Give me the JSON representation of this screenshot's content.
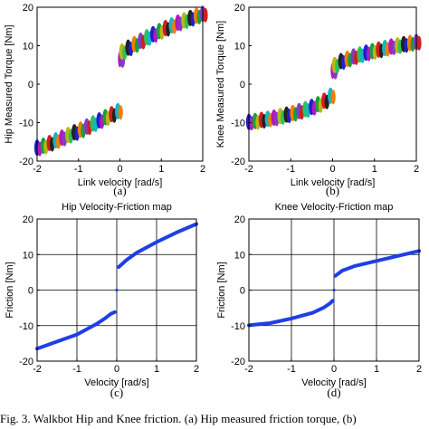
{
  "caption": "Fig. 3. Walkbot Hip and Knee friction. (a) Hip measured friction torque, (b)",
  "chart_data": [
    {
      "type": "scatter",
      "panel_label": "(a)",
      "title": "",
      "xlabel": "Link velocity [rad/s]",
      "ylabel": "Hip Measured Torque [Nm]",
      "xlim": [
        -2,
        2
      ],
      "ylim": [
        -20,
        20
      ],
      "xticks": [
        "-2",
        "-1",
        "0",
        "1",
        "2"
      ],
      "yticks": [
        "20",
        "10",
        "0",
        "-10",
        "-20"
      ],
      "grid": false,
      "markers": "multi-colored clusters",
      "colors": [
        "#1f1fd0",
        "#17a03a",
        "#d01f1f",
        "#17b5c0",
        "#b517c0",
        "#b8b817",
        "#222222",
        "#f07f00",
        "#7f3fbf",
        "#2fbf5f"
      ],
      "series": [
        {
          "x": [
            -2.0,
            -1.85,
            -1.7,
            -1.55,
            -1.4,
            -1.25,
            -1.1,
            -0.95,
            -0.8,
            -0.65,
            -0.5,
            -0.35,
            -0.2,
            -0.05
          ],
          "y": [
            -16.5,
            -16,
            -15.3,
            -14.6,
            -13.9,
            -13.2,
            -12.5,
            -11.8,
            -11,
            -10.2,
            -9.4,
            -8.6,
            -7.8,
            -7
          ]
        },
        {
          "x": [
            0.0,
            0.05,
            0.2,
            0.35,
            0.5,
            0.65,
            0.8,
            0.95,
            1.1,
            1.25,
            1.4,
            1.55,
            1.7,
            1.85,
            2.0
          ],
          "y": [
            6.5,
            8.5,
            9.5,
            10.4,
            11.3,
            12.2,
            13,
            13.8,
            14.6,
            15.3,
            16,
            16.6,
            17.2,
            17.8,
            18.3
          ]
        }
      ]
    },
    {
      "type": "scatter",
      "panel_label": "(b)",
      "title": "",
      "xlabel": "Link velocity [rad/s]",
      "ylabel": "Knee Measured Torque [Nm]",
      "xlim": [
        -2,
        2
      ],
      "ylim": [
        -20,
        20
      ],
      "xticks": [
        "-2",
        "-1",
        "0",
        "1",
        "2"
      ],
      "yticks": [
        "20",
        "10",
        "0",
        "-10",
        "-20"
      ],
      "grid": false,
      "markers": "multi-colored clusters",
      "colors": [
        "#1f1fd0",
        "#17a03a",
        "#d01f1f",
        "#17b5c0",
        "#b517c0",
        "#b8b817",
        "#222222",
        "#f07f00",
        "#7f3fbf",
        "#2fbf5f"
      ],
      "series": [
        {
          "x": [
            -2.0,
            -1.85,
            -1.7,
            -1.55,
            -1.4,
            -1.25,
            -1.1,
            -0.95,
            -0.8,
            -0.65,
            -0.5,
            -0.35,
            -0.2,
            -0.05
          ],
          "y": [
            -9.8,
            -9.6,
            -9.3,
            -9,
            -8.7,
            -8.3,
            -7.9,
            -7.5,
            -7,
            -6.5,
            -5.9,
            -5.2,
            -4.3,
            -3
          ]
        },
        {
          "x": [
            0.0,
            0.05,
            0.2,
            0.35,
            0.5,
            0.65,
            0.8,
            0.95,
            1.1,
            1.25,
            1.4,
            1.55,
            1.7,
            1.85,
            2.0
          ],
          "y": [
            3.5,
            5,
            6,
            6.6,
            7.2,
            7.7,
            8.2,
            8.6,
            9,
            9.4,
            9.8,
            10.1,
            10.4,
            10.7,
            11
          ]
        }
      ]
    },
    {
      "type": "line",
      "panel_label": "(c)",
      "title": "Hip Velocity-Friction map",
      "xlabel": "Velocity [rad/s]",
      "ylabel": "Friction [Nm]",
      "xlim": [
        -2,
        2
      ],
      "ylim": [
        -20,
        20
      ],
      "xticks": [
        "-2",
        "-1",
        "0",
        "1",
        "2"
      ],
      "yticks": [
        "20",
        "10",
        "0",
        "-10",
        "-20"
      ],
      "grid": true,
      "color": "#1f3fe6",
      "series": [
        {
          "x": [
            -2.0,
            -1.5,
            -1.0,
            -0.5,
            -0.3,
            -0.15,
            -0.05
          ],
          "y": [
            -16.5,
            -14.5,
            -12.5,
            -9.5,
            -8,
            -6.7,
            -6.2
          ]
        },
        {
          "x": [
            0.0
          ],
          "y": [
            0
          ]
        },
        {
          "x": [
            0.05,
            0.25,
            0.5,
            1.0,
            1.5,
            2.0
          ],
          "y": [
            6.5,
            8.5,
            10.5,
            13.5,
            16.2,
            18.6
          ]
        }
      ]
    },
    {
      "type": "line",
      "panel_label": "(d)",
      "title": "Knee Velocity-Friction map",
      "xlabel": "Velocity [rad/s]",
      "ylabel": "Friction [Nm]",
      "xlim": [
        -2,
        2
      ],
      "ylim": [
        -20,
        20
      ],
      "xticks": [
        "-2",
        "-1",
        "0",
        "1",
        "2"
      ],
      "yticks": [
        "20",
        "10",
        "0",
        "-10",
        "-20"
      ],
      "grid": true,
      "color": "#1f3fe6",
      "series": [
        {
          "x": [
            -2.0,
            -1.5,
            -1.0,
            -0.5,
            -0.25,
            -0.1,
            -0.03
          ],
          "y": [
            -9.9,
            -9.3,
            -8,
            -6.4,
            -5,
            -3.8,
            -3
          ]
        },
        {
          "x": [
            0.0
          ],
          "y": [
            0
          ]
        },
        {
          "x": [
            0.03,
            0.2,
            0.5,
            1.0,
            1.5,
            2.0
          ],
          "y": [
            4,
            5.5,
            6.8,
            8.2,
            9.6,
            11
          ]
        }
      ]
    }
  ]
}
